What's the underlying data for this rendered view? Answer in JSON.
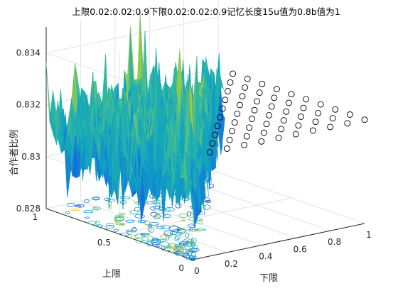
{
  "chart_data": {
    "type": "surface3d",
    "title": "上限0.02:0.02:0.9下限0.02:0.02:0.9记忆长度15u值为0.8b值为1",
    "xlabel": "下限",
    "ylabel": "上限",
    "zlabel": "合作者比例",
    "xlim": [
      0,
      1
    ],
    "ylim": [
      0,
      1
    ],
    "zlim": [
      0.828,
      0.835
    ],
    "xticks": [
      "0",
      "0.2",
      "0.4",
      "0.6",
      "0.8",
      "1"
    ],
    "yticks": [
      "0",
      "0.5",
      "1"
    ],
    "zticks": [
      "0.828",
      "0.83",
      "0.832",
      "0.834"
    ],
    "grid": true,
    "colormap": "parula",
    "surface_domain": "lower <= upper",
    "surface_mean": 0.831,
    "surface_range": [
      0.8285,
      0.8348
    ],
    "markers": {
      "style": "open-circle",
      "z_value": 0.832,
      "region": "lower > upper",
      "grid_step": 0.1
    }
  }
}
